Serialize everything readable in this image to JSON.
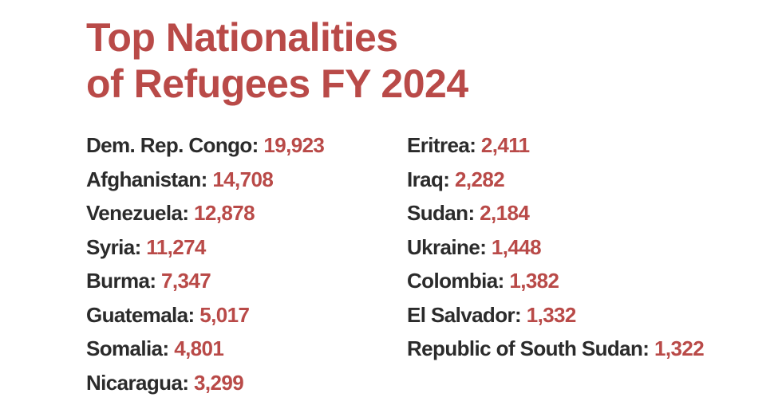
{
  "title": {
    "line1": "Top Nationalities",
    "line2": "of Refugees FY 2024"
  },
  "colors": {
    "accent": "#b94a48",
    "text": "#2b2b2b"
  },
  "left_column": [
    {
      "country": "Dem. Rep. Congo",
      "value": "19,923"
    },
    {
      "country": "Afghanistan",
      "value": "14,708"
    },
    {
      "country": "Venezuela",
      "value": "12,878"
    },
    {
      "country": "Syria",
      "value": "11,274"
    },
    {
      "country": "Burma",
      "value": "7,347"
    },
    {
      "country": "Guatemala",
      "value": "5,017"
    },
    {
      "country": "Somalia",
      "value": "4,801"
    },
    {
      "country": "Nicaragua",
      "value": "3,299"
    }
  ],
  "right_column": [
    {
      "country": "Eritrea",
      "value": "2,411"
    },
    {
      "country": "Iraq",
      "value": "2,282"
    },
    {
      "country": "Sudan",
      "value": "2,184"
    },
    {
      "country": "Ukraine",
      "value": "1,448"
    },
    {
      "country": "Colombia",
      "value": "1,382"
    },
    {
      "country": "El Salvador",
      "value": "1,332"
    },
    {
      "country": "Republic of South Sudan",
      "value": "1,322"
    }
  ]
}
